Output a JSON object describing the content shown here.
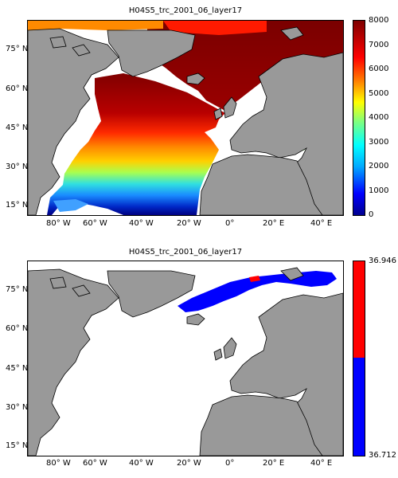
{
  "top_panel": {
    "title": "H04S5_trc_2001_06_layer17",
    "colorbar": {
      "ticks": [
        "8000",
        "7000",
        "6000",
        "5000",
        "4000",
        "3000",
        "2000",
        "1000",
        "0"
      ],
      "vmin": 0,
      "vmax": 8000,
      "colormap": "jet"
    }
  },
  "bottom_panel": {
    "title": "H04S5_trc_2001_06_layer17",
    "colorbar": {
      "top_label": "36.946",
      "bottom_label": "36.712",
      "colors": [
        "#ff0000",
        "#0000ff"
      ],
      "split_fraction": 0.48
    }
  },
  "axes": {
    "lat_labels": [
      "75° N",
      "60° N",
      "45° N",
      "30° N",
      "15° N"
    ],
    "lon_labels": [
      "80° W",
      "60° W",
      "40° W",
      "20° W",
      "0°",
      "20° E",
      "40° E"
    ]
  },
  "colors": {
    "land": "#999999",
    "ocean_nodata": "#ffffff",
    "coast": "#000000"
  }
}
